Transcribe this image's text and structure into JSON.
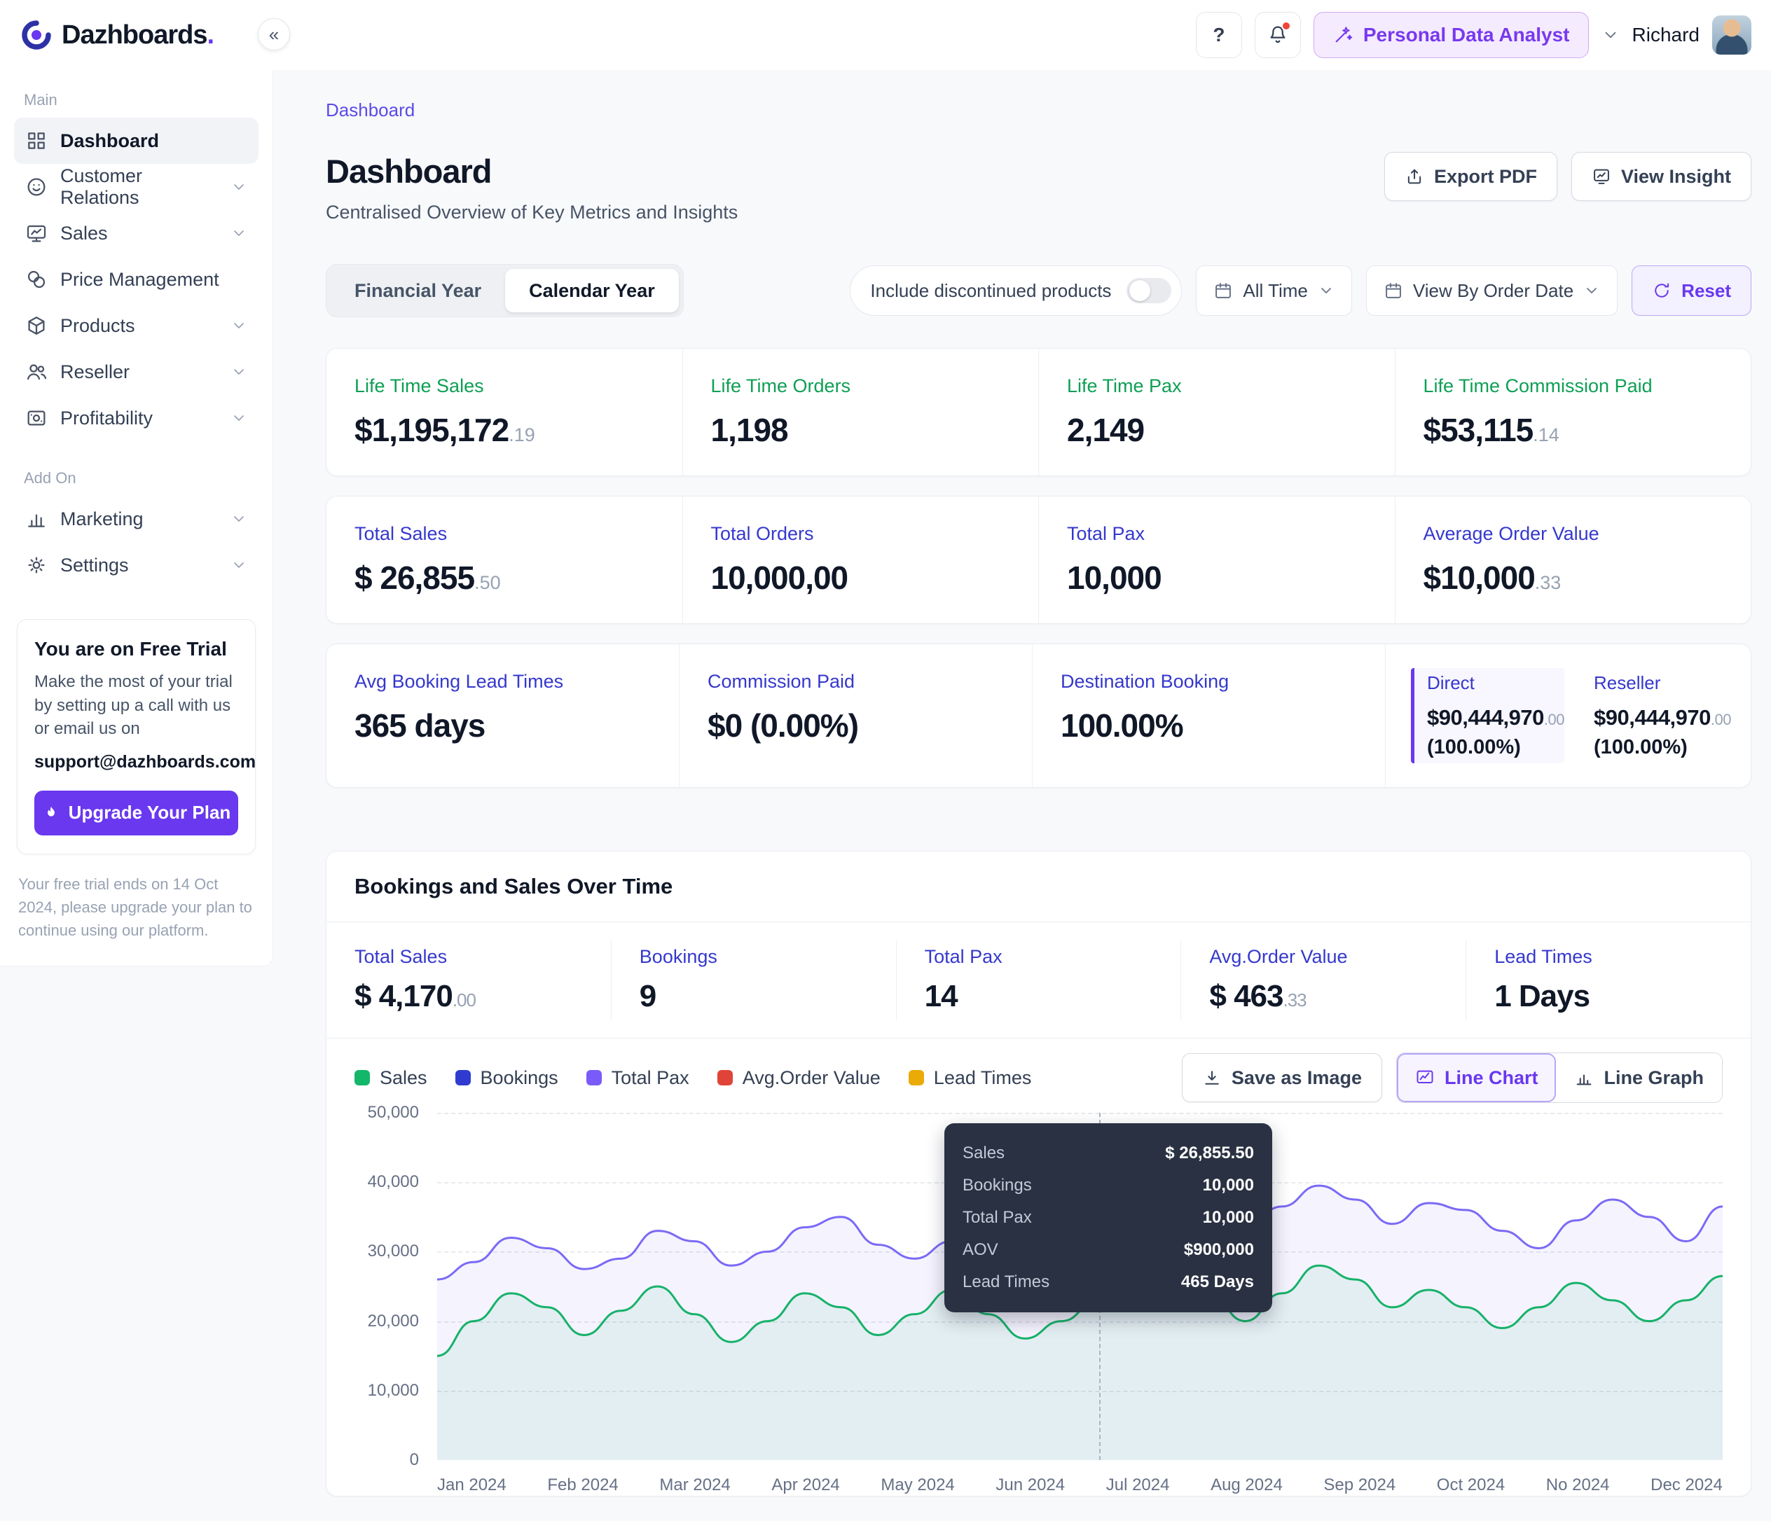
{
  "brand": {
    "name": "Dazhboards",
    "dot": "."
  },
  "topbar": {
    "collapse_glyph": "«",
    "help_label": "?",
    "analyst_label": "Personal Data Analyst",
    "user_name": "Richard"
  },
  "sidebar": {
    "section_main": "Main",
    "section_addon": "Add On",
    "items_main": [
      {
        "label": "Dashboard"
      },
      {
        "label": "Customer Relations"
      },
      {
        "label": "Sales"
      },
      {
        "label": "Price Management"
      },
      {
        "label": "Products"
      },
      {
        "label": "Reseller"
      },
      {
        "label": "Profitability"
      }
    ],
    "items_addon": [
      {
        "label": "Marketing"
      },
      {
        "label": "Settings"
      }
    ],
    "trial": {
      "title": "You are on Free Trial",
      "body": "Make the most of your trial by setting up a call with us or email us on",
      "email": "support@dazhboards.com",
      "cta": "Upgrade Your Plan",
      "note": "Your free trial ends on 14 Oct 2024, please upgrade your plan to continue using our platform."
    }
  },
  "page": {
    "breadcrumb": "Dashboard",
    "title": "Dashboard",
    "subtitle": "Centralised Overview of Key Metrics and Insights",
    "export_label": "Export PDF",
    "insight_label": "View Insight"
  },
  "filters": {
    "tab_financial": "Financial Year",
    "tab_calendar": "Calendar Year",
    "discontinued_label": "Include discontinued products",
    "all_time": "All Time",
    "view_by": "View By Order Date",
    "reset": "Reset"
  },
  "row1": [
    {
      "label": "Life Time Sales",
      "value": "$1,195,172",
      "dec": ".19"
    },
    {
      "label": "Life Time Orders",
      "value": "1,198",
      "dec": ""
    },
    {
      "label": "Life Time Pax",
      "value": "2,149",
      "dec": ""
    },
    {
      "label": "Life Time Commission Paid",
      "value": "$53,115",
      "dec": ".14"
    }
  ],
  "row2": [
    {
      "label": "Total Sales",
      "value": "$ 26,855",
      "dec": ".50"
    },
    {
      "label": "Total Orders",
      "value": "10,000,00",
      "dec": ""
    },
    {
      "label": "Total Pax",
      "value": "10,000",
      "dec": ""
    },
    {
      "label": "Average Order Value",
      "value": "$10,000",
      "dec": ".33"
    }
  ],
  "row3": [
    {
      "label": "Avg Booking Lead Times",
      "value": "365 days"
    },
    {
      "label": "Commission Paid",
      "value": "$0 (0.00%)"
    },
    {
      "label": "Destination Booking",
      "value": "100.00%"
    }
  ],
  "row3_split": {
    "direct_label": "Direct",
    "direct_value": "$90,444,970",
    "direct_dec": ".00",
    "direct_pct": "(100.00%)",
    "reseller_label": "Reseller",
    "reseller_value": "$90,444,970",
    "reseller_dec": ".00",
    "reseller_pct": "(100.00%)"
  },
  "bookings": {
    "title": "Bookings and Sales Over Time",
    "metrics": [
      {
        "label": "Total Sales",
        "value": "$ 4,170",
        "dec": ".00"
      },
      {
        "label": "Bookings",
        "value": "9",
        "dec": ""
      },
      {
        "label": "Total Pax",
        "value": "14",
        "dec": ""
      },
      {
        "label": "Avg.Order Value",
        "value": "$ 463",
        "dec": ".33"
      },
      {
        "label": "Lead Times",
        "value": "1 Days",
        "dec": ""
      }
    ],
    "legend": [
      {
        "label": "Sales",
        "color": "#12B76A"
      },
      {
        "label": "Bookings",
        "color": "#2F3CCF"
      },
      {
        "label": "Total Pax",
        "color": "#7A5AF8"
      },
      {
        "label": "Avg.Order Value",
        "color": "#E04438"
      },
      {
        "label": "Lead Times",
        "color": "#EAAA08"
      }
    ],
    "save_image": "Save as Image",
    "line_chart": "Line Chart",
    "line_graph": "Line Graph",
    "tooltip": {
      "rows": [
        {
          "label": "Sales",
          "value": "$ 26,855.50"
        },
        {
          "label": "Bookings",
          "value": "10,000"
        },
        {
          "label": "Total Pax",
          "value": "10,000"
        },
        {
          "label": "AOV",
          "value": "$900,000"
        },
        {
          "label": "Lead Times",
          "value": "465 Days"
        }
      ]
    }
  },
  "chart_data": {
    "type": "area",
    "title": "Bookings and Sales Over Time",
    "x": [
      "Jan 2024",
      "Feb 2024",
      "Mar 2024",
      "Apr 2024",
      "May 2024",
      "Jun 2024",
      "Jul 2024",
      "Aug 2024",
      "Sep 2024",
      "Oct 2024",
      "No 2024",
      "Dec 2024"
    ],
    "y_ticks": [
      "50,000",
      "40,000",
      "30,000",
      "20,000",
      "10,000",
      "0"
    ],
    "ylim": [
      0,
      50000
    ],
    "grid": "dashed-horizontal",
    "legend_position": "top-left",
    "cursor_x_fraction": 0.515,
    "series": [
      {
        "name": "Bookings/Total Pax",
        "color": "#7A6AF6",
        "values": [
          26000,
          28500,
          32000,
          30500,
          27500,
          29000,
          33000,
          31500,
          28000,
          30000,
          33500,
          35000,
          31000,
          29000,
          31500,
          34000,
          30000,
          28000,
          31000,
          35500,
          33000,
          30500,
          33500,
          36500,
          39500,
          37500,
          34000,
          37000,
          36000,
          33000,
          30500,
          34500,
          37500,
          35000,
          31500,
          36500
        ]
      },
      {
        "name": "Sales",
        "color": "#17B26A",
        "values": [
          15000,
          20000,
          24000,
          22000,
          18000,
          21500,
          25000,
          21000,
          17000,
          20000,
          24000,
          22000,
          18000,
          21000,
          24500,
          21000,
          17500,
          20000,
          23000,
          25500,
          28000,
          24000,
          20000,
          24000,
          28000,
          26000,
          22000,
          24500,
          22000,
          19000,
          22000,
          25500,
          23000,
          20000,
          23000,
          26500
        ]
      }
    ]
  }
}
